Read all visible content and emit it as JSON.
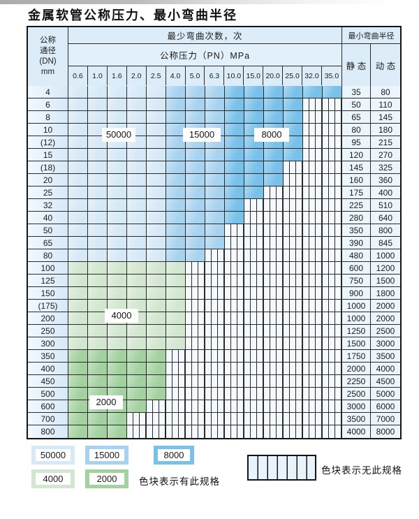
{
  "title": "金属软管公称压力、最小弯曲半径",
  "header": {
    "dn_lines": [
      "公称",
      "通径",
      "(DN)",
      "mm"
    ],
    "cycles_header": "最少弯曲次数，次",
    "pressure_header": "公称压力（PN）MPa",
    "pressures": [
      "0.6",
      "1.0",
      "1.6",
      "2.0",
      "2.5",
      "4.0",
      "5.0",
      "6.3",
      "10.0",
      "15.0",
      "20.0",
      "25.0",
      "32.0",
      "35.0"
    ],
    "radius_header": "最小弯曲半径",
    "static_label": "静 态",
    "dynamic_label": "动 态"
  },
  "cycle_colors": {
    "50000": "#d6e9f7",
    "15000": "#a8d3f0",
    "8000": "#79c1ea",
    "4000": "#d3e7d0",
    "2000": "#a3d2a0"
  },
  "schemes": {
    "blue": {
      "bands": [
        {
          "upto": 5,
          "cycles": "50000"
        },
        {
          "upto": 8,
          "cycles": "15000"
        },
        {
          "upto": 14,
          "cycles": "8000"
        }
      ]
    },
    "g4": {
      "bands": [
        {
          "upto": 14,
          "cycles": "4000"
        }
      ]
    },
    "g2": {
      "bands": [
        {
          "upto": 14,
          "cycles": "2000"
        }
      ]
    }
  },
  "rows": [
    {
      "dn": "4",
      "colored": 14,
      "scheme": "blue",
      "static": "35",
      "dynamic": "80"
    },
    {
      "dn": "6",
      "colored": 12,
      "scheme": "blue",
      "static": "50",
      "dynamic": "110"
    },
    {
      "dn": "8",
      "colored": 12,
      "scheme": "blue",
      "static": "65",
      "dynamic": "145"
    },
    {
      "dn": "10",
      "colored": 12,
      "scheme": "blue",
      "static": "80",
      "dynamic": "180"
    },
    {
      "dn": "(12)",
      "colored": 12,
      "scheme": "blue",
      "static": "95",
      "dynamic": "215"
    },
    {
      "dn": "15",
      "colored": 12,
      "scheme": "blue",
      "static": "120",
      "dynamic": "270"
    },
    {
      "dn": "(18)",
      "colored": 11,
      "scheme": "blue",
      "static": "145",
      "dynamic": "325"
    },
    {
      "dn": "20",
      "colored": 11,
      "scheme": "blue",
      "static": "160",
      "dynamic": "360"
    },
    {
      "dn": "25",
      "colored": 10,
      "scheme": "blue",
      "static": "175",
      "dynamic": "400"
    },
    {
      "dn": "32",
      "colored": 9,
      "scheme": "blue",
      "static": "225",
      "dynamic": "510"
    },
    {
      "dn": "40",
      "colored": 9,
      "scheme": "blue",
      "static": "280",
      "dynamic": "640"
    },
    {
      "dn": "50",
      "colored": 8,
      "scheme": "blue",
      "static": "350",
      "dynamic": "800"
    },
    {
      "dn": "65",
      "colored": 8,
      "scheme": "blue",
      "static": "390",
      "dynamic": "845"
    },
    {
      "dn": "80",
      "colored": 7,
      "scheme": "blue",
      "static": "480",
      "dynamic": "1000"
    },
    {
      "dn": "100",
      "colored": 6,
      "scheme": "g4",
      "static": "600",
      "dynamic": "1200"
    },
    {
      "dn": "125",
      "colored": 6,
      "scheme": "g4",
      "static": "750",
      "dynamic": "1500"
    },
    {
      "dn": "150",
      "colored": 6,
      "scheme": "g4",
      "static": "900",
      "dynamic": "1800"
    },
    {
      "dn": "(175)",
      "colored": 6,
      "scheme": "g4",
      "static": "1000",
      "dynamic": "2000"
    },
    {
      "dn": "200",
      "colored": 6,
      "scheme": "g4",
      "static": "1000",
      "dynamic": "2000"
    },
    {
      "dn": "250",
      "colored": 6,
      "scheme": "g4",
      "static": "1250",
      "dynamic": "2500"
    },
    {
      "dn": "300",
      "colored": 6,
      "scheme": "g4",
      "static": "1500",
      "dynamic": "3000"
    },
    {
      "dn": "350",
      "colored": 5,
      "scheme": "g2",
      "static": "1750",
      "dynamic": "3500"
    },
    {
      "dn": "400",
      "colored": 5,
      "scheme": "g2",
      "static": "2000",
      "dynamic": "4000"
    },
    {
      "dn": "450",
      "colored": 5,
      "scheme": "g2",
      "static": "2250",
      "dynamic": "4500"
    },
    {
      "dn": "500",
      "colored": 5,
      "scheme": "g2",
      "static": "2500",
      "dynamic": "5000"
    },
    {
      "dn": "600",
      "colored": 4,
      "scheme": "g2",
      "static": "3000",
      "dynamic": "6000"
    },
    {
      "dn": "700",
      "colored": 3,
      "scheme": "g2",
      "static": "3500",
      "dynamic": "7000"
    },
    {
      "dn": "800",
      "colored": 3,
      "scheme": "g2",
      "static": "4000",
      "dynamic": "8000"
    }
  ],
  "overlays": {
    "n50000": "50000",
    "n15000": "15000",
    "n8000": "8000",
    "n4000": "4000",
    "n2000": "2000"
  },
  "legend": {
    "items": [
      "50000",
      "15000",
      "8000",
      "4000",
      "2000"
    ],
    "has_spec_text": "色块表示有此规格",
    "no_spec_text": "色块表示无此规格"
  }
}
